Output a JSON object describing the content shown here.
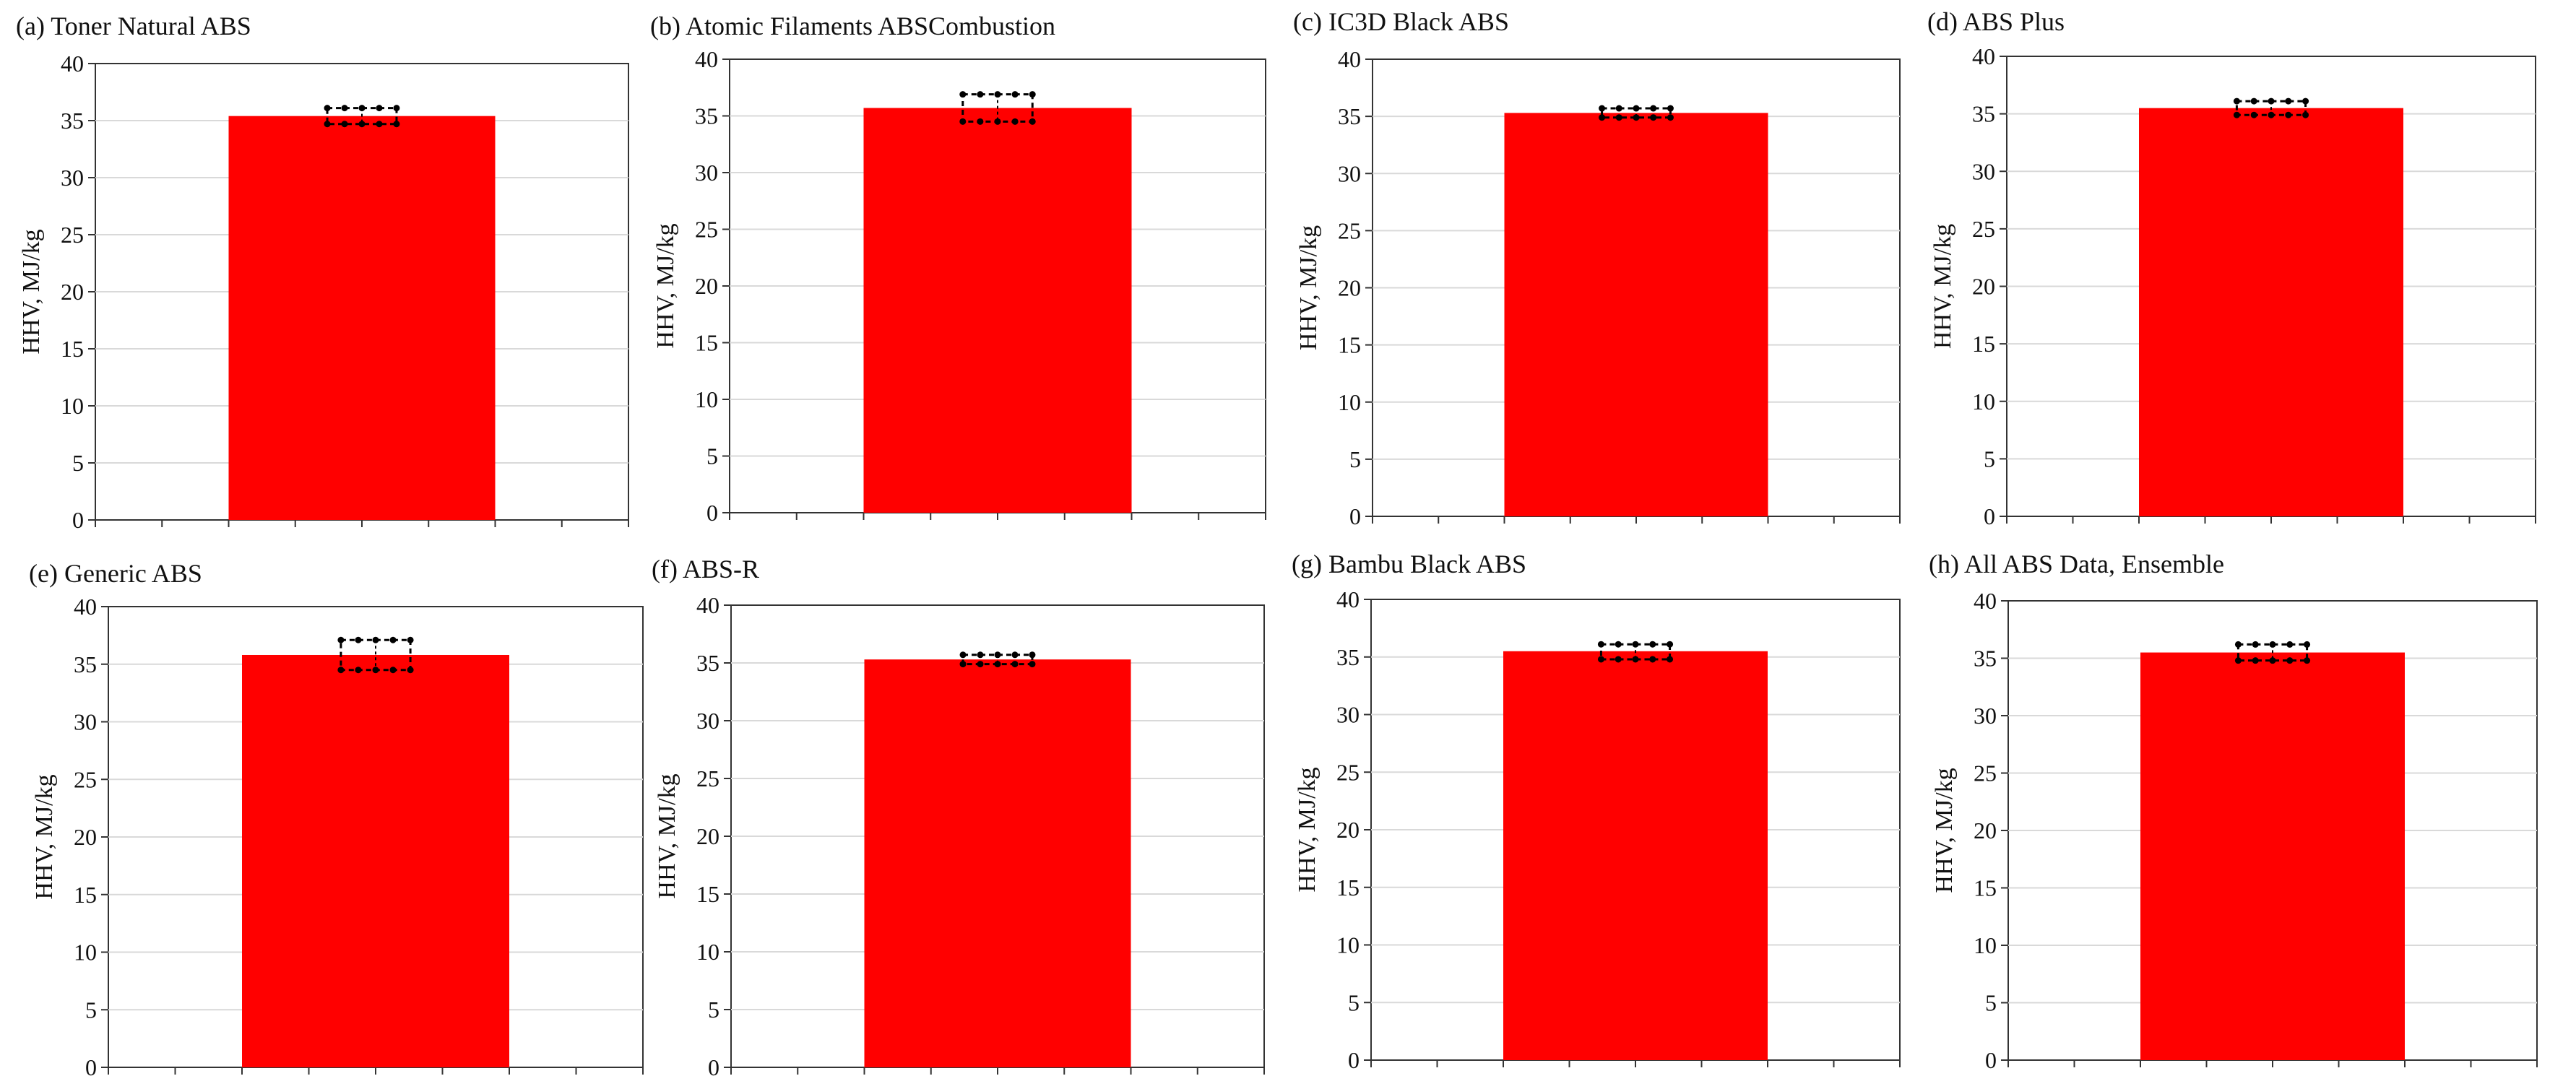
{
  "colors": {
    "bar": "#ff0000",
    "grid": "#d9d9d9",
    "axis": "#333333",
    "errorbar": "#000000"
  },
  "chart_data": [
    {
      "type": "bar",
      "title": "(a) Toner Natural ABS",
      "ylabel": "HHV, MJ/kg",
      "xlabel": "",
      "ylim": [
        0,
        40
      ],
      "yticks": [
        0,
        5,
        10,
        15,
        20,
        25,
        30,
        35,
        40
      ],
      "grid": true,
      "categories": [
        ""
      ],
      "values": [
        35.4
      ],
      "error_low": [
        34.7
      ],
      "error_high": [
        36.1
      ]
    },
    {
      "type": "bar",
      "title": "(b) Atomic Filaments ABSCombustion",
      "ylabel": "HHV, MJ/kg",
      "xlabel": "",
      "ylim": [
        0,
        40
      ],
      "yticks": [
        0,
        5,
        10,
        15,
        20,
        25,
        30,
        35,
        40
      ],
      "grid": true,
      "categories": [
        ""
      ],
      "values": [
        35.7
      ],
      "error_low": [
        34.5
      ],
      "error_high": [
        36.9
      ]
    },
    {
      "type": "bar",
      "title": "(c) IC3D Black ABS",
      "ylabel": "HHV, MJ/kg",
      "xlabel": "",
      "ylim": [
        0,
        40
      ],
      "yticks": [
        0,
        5,
        10,
        15,
        20,
        25,
        30,
        35,
        40
      ],
      "grid": true,
      "categories": [
        ""
      ],
      "values": [
        35.3
      ],
      "error_low": [
        34.9
      ],
      "error_high": [
        35.7
      ]
    },
    {
      "type": "bar",
      "title": "(d) ABS Plus",
      "ylabel": "HHV, MJ/kg",
      "xlabel": "",
      "ylim": [
        0,
        40
      ],
      "yticks": [
        0,
        5,
        10,
        15,
        20,
        25,
        30,
        35,
        40
      ],
      "grid": true,
      "categories": [
        ""
      ],
      "values": [
        35.5
      ],
      "error_low": [
        34.9
      ],
      "error_high": [
        36.1
      ]
    },
    {
      "type": "bar",
      "title": "(e) Generic ABS",
      "ylabel": "HHV, MJ/kg",
      "xlabel": "",
      "ylim": [
        0,
        40
      ],
      "yticks": [
        0,
        5,
        10,
        15,
        20,
        25,
        30,
        35,
        40
      ],
      "grid": true,
      "categories": [
        ""
      ],
      "values": [
        35.8
      ],
      "error_low": [
        34.5
      ],
      "error_high": [
        37.1
      ]
    },
    {
      "type": "bar",
      "title": "(f) ABS-R",
      "ylabel": "HHV, MJ/kg",
      "xlabel": "",
      "ylim": [
        0,
        40
      ],
      "yticks": [
        0,
        5,
        10,
        15,
        20,
        25,
        30,
        35,
        40
      ],
      "grid": true,
      "categories": [
        ""
      ],
      "values": [
        35.3
      ],
      "error_low": [
        34.9
      ],
      "error_high": [
        35.7
      ]
    },
    {
      "type": "bar",
      "title": "(g) Bambu Black ABS",
      "ylabel": "HHV, MJ/kg",
      "xlabel": "",
      "ylim": [
        0,
        40
      ],
      "yticks": [
        0,
        5,
        10,
        15,
        20,
        25,
        30,
        35,
        40
      ],
      "grid": true,
      "categories": [
        ""
      ],
      "values": [
        35.5
      ],
      "error_low": [
        34.8
      ],
      "error_high": [
        36.1
      ]
    },
    {
      "type": "bar",
      "title": "(h) All ABS Data, Ensemble",
      "ylabel": "HHV, MJ/kg",
      "xlabel": "",
      "ylim": [
        0,
        40
      ],
      "yticks": [
        0,
        5,
        10,
        15,
        20,
        25,
        30,
        35,
        40
      ],
      "grid": true,
      "categories": [
        ""
      ],
      "values": [
        35.5
      ],
      "error_low": [
        34.8
      ],
      "error_high": [
        36.2
      ]
    }
  ]
}
